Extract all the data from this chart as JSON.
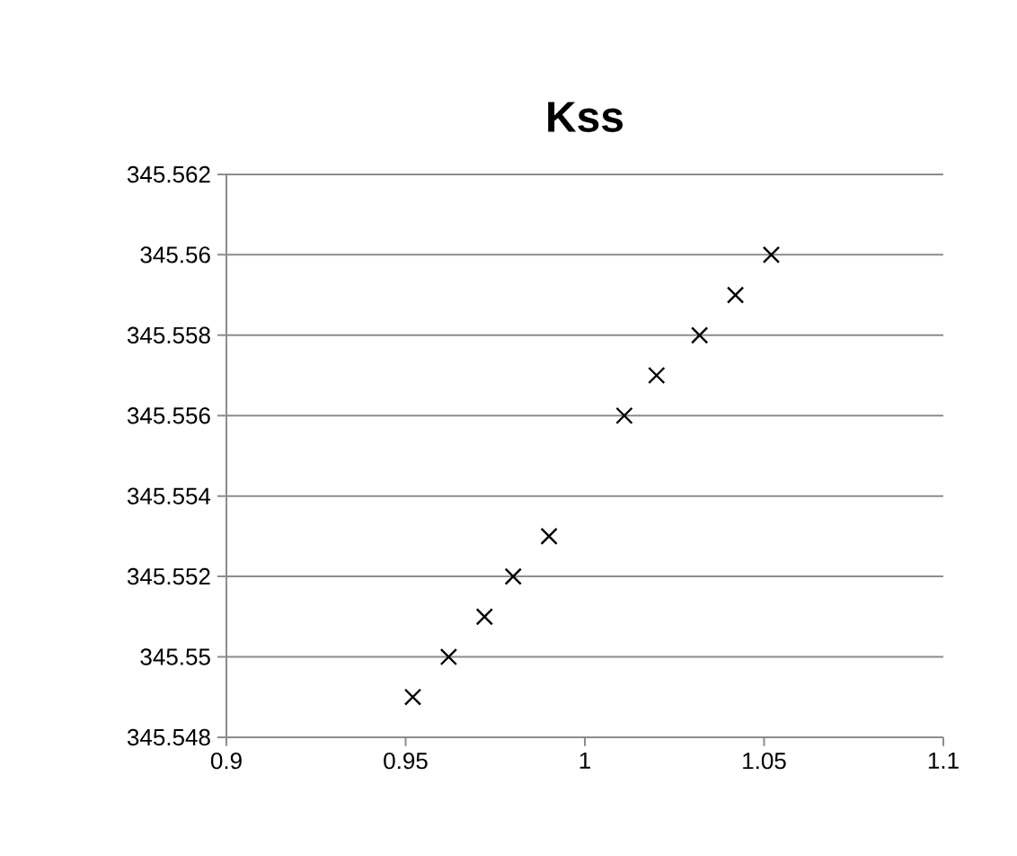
{
  "chart_data": {
    "type": "scatter",
    "title": "Kss",
    "marker": "cross",
    "grid": "y",
    "x": [
      0.952,
      0.962,
      0.972,
      0.98,
      0.99,
      1.011,
      1.02,
      1.032,
      1.042,
      1.052
    ],
    "values": [
      345.549,
      345.55,
      345.551,
      345.552,
      345.553,
      345.556,
      345.557,
      345.558,
      345.559,
      345.56
    ],
    "color": "#000000",
    "xlim": [
      0.9,
      1.1
    ],
    "xticks": [
      0.9,
      0.95,
      1,
      1.05,
      1.1
    ],
    "ylim": [
      345.548,
      345.562
    ],
    "yticks": [
      345.548,
      345.55,
      345.552,
      345.554,
      345.556,
      345.558,
      345.56,
      345.562
    ]
  }
}
